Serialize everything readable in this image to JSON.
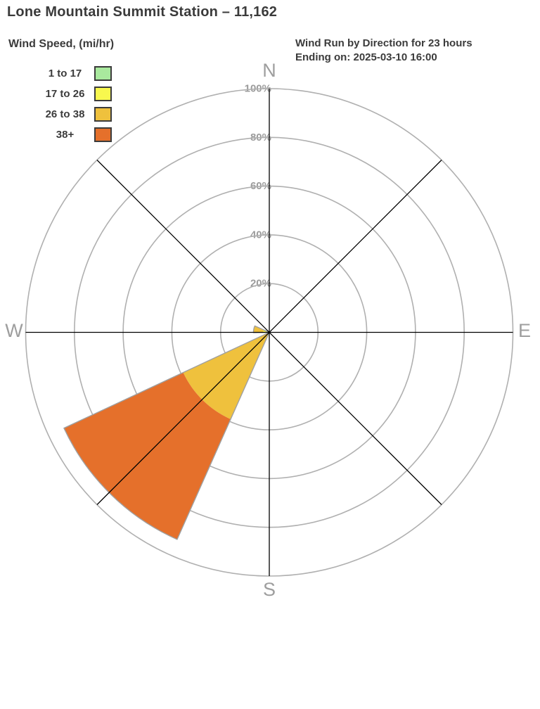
{
  "header": {
    "title": "Lone Mountain Summit Station – 11,162",
    "subtitle_line1": "Wind Run by Direction for 23 hours",
    "subtitle_line2": "Ending on: 2025-03-10 16:00"
  },
  "legend": {
    "title": "Wind Speed, (mi/hr)"
  },
  "chart_data": {
    "type": "wind-rose-polar-bar",
    "title": "Wind Run by Direction for 23 hours Ending on: 2025-03-10 16:00",
    "station": "Lone Mountain Summit Station – 11,162",
    "units": "percent of wind run",
    "radial_axis_range": [
      0,
      100
    ],
    "categories": [
      "N",
      "NE",
      "E",
      "SE",
      "S",
      "SW",
      "W",
      "NW"
    ],
    "bins": [
      {
        "label": "1 to 17",
        "color": "#a9e99e"
      },
      {
        "label": "17 to 26",
        "color": "#f8f84e"
      },
      {
        "label": "26 to 38",
        "color": "#efc13d"
      },
      {
        "label": "38+",
        "color": "#e5702b"
      }
    ],
    "series": [
      {
        "name": "1 to 17",
        "values": [
          0,
          0,
          0,
          0,
          0,
          0,
          0,
          0
        ]
      },
      {
        "name": "17 to 26",
        "values": [
          0,
          0,
          0,
          0,
          0,
          0,
          2.5,
          0
        ]
      },
      {
        "name": "26 to 38",
        "values": [
          0,
          0,
          0,
          0,
          0,
          39,
          4,
          0
        ]
      },
      {
        "name": "38+",
        "values": [
          0,
          0,
          0,
          0,
          0,
          54,
          0,
          0
        ]
      }
    ],
    "radial_ticks": [
      {
        "label": "20%",
        "pct": 20
      },
      {
        "label": "40%",
        "pct": 40
      },
      {
        "label": "60%",
        "pct": 60
      },
      {
        "label": "80%",
        "pct": 80
      },
      {
        "label": "100%",
        "pct": 100
      }
    ],
    "compass": {
      "n": "N",
      "e": "E",
      "s": "S",
      "w": "W"
    },
    "petals": [
      {
        "direction": "SW",
        "start_deg": 204,
        "end_deg": 245,
        "segments": [
          {
            "bin": "26 to 38",
            "from_pct": 0,
            "to_pct": 39
          },
          {
            "bin": "38+",
            "from_pct": 39,
            "to_pct": 93
          }
        ]
      },
      {
        "direction": "W",
        "start_deg": 269,
        "end_deg": 294,
        "segments": [
          {
            "bin": "17 to 26",
            "from_pct": 0,
            "to_pct": 2.5
          },
          {
            "bin": "26 to 38",
            "from_pct": 2.5,
            "to_pct": 6.5
          }
        ]
      }
    ],
    "grid": "circular rings at 20% steps, 8 spokes",
    "legend_position": "top-left"
  }
}
